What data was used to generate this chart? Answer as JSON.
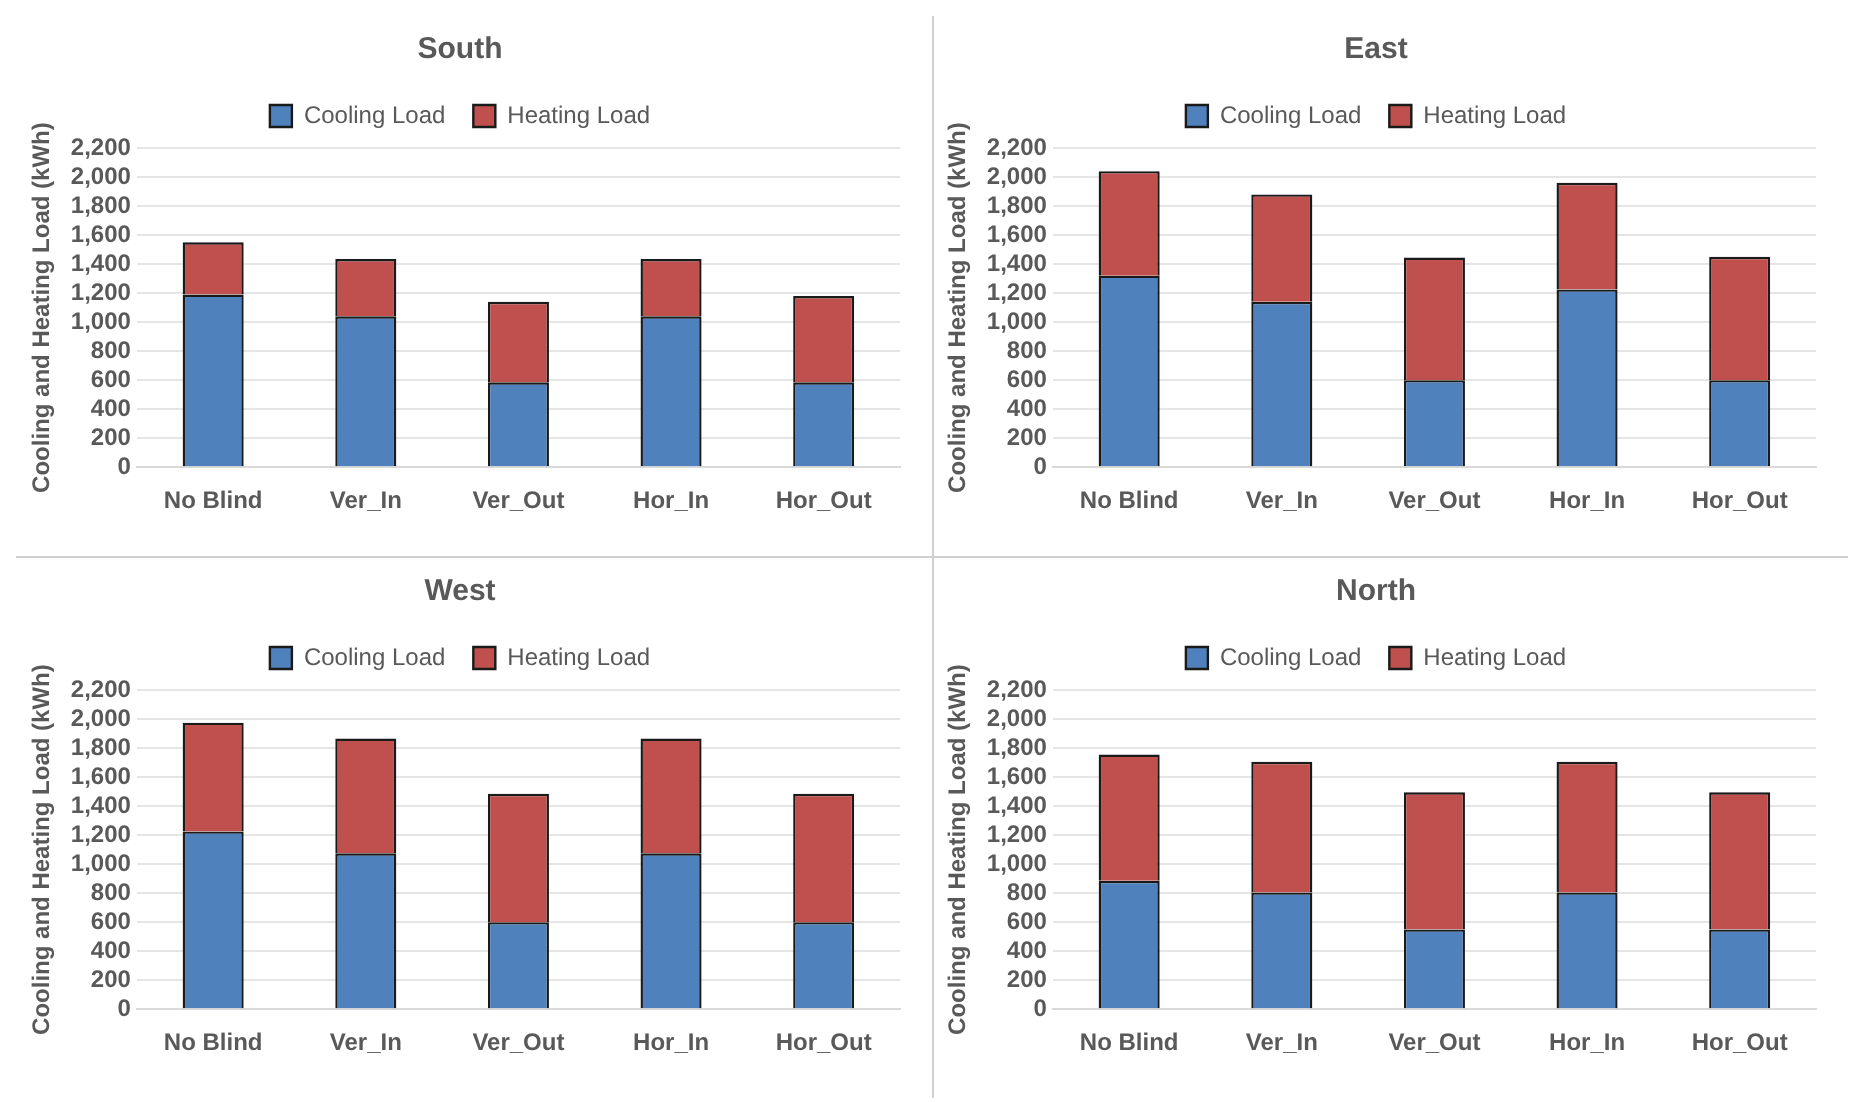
{
  "chart_data": [
    {
      "type": "bar",
      "title": "South",
      "ylabel": "Cooling and Heating Load (kWh)",
      "categories": [
        "No Blind",
        "Ver_In",
        "Ver_Out",
        "Hor_In",
        "Hor_Out"
      ],
      "stacked": true,
      "legend": "top",
      "grid": "y",
      "ylim": [
        0,
        2200
      ],
      "yticks": [
        0,
        200,
        400,
        600,
        800,
        {
          "value": 1000,
          "label": "1,000"
        },
        {
          "value": 1200,
          "label": "1,200"
        },
        {
          "value": 1400,
          "label": "1,400"
        },
        {
          "value": 1600,
          "label": "1,600"
        },
        {
          "value": 1800,
          "label": "1,800"
        },
        {
          "value": 2000,
          "label": "2,000"
        },
        {
          "value": 2200,
          "label": "2,200"
        }
      ],
      "series": [
        {
          "name": "Cooling Load",
          "color": "#4f81bd",
          "values": [
            1190,
            1040,
            585,
            1040,
            585
          ]
        },
        {
          "name": "Heating Load",
          "color": "#c0504d",
          "values": [
            360,
            395,
            555,
            395,
            595
          ]
        }
      ]
    },
    {
      "type": "bar",
      "title": "East",
      "ylabel": "Cooling and Heating Load (kWh)",
      "categories": [
        "No Blind",
        "Ver_In",
        "Ver_Out",
        "Hor_In",
        "Hor_Out"
      ],
      "stacked": true,
      "legend": "top",
      "grid": "y",
      "ylim": [
        0,
        2200
      ],
      "yticks": [
        0,
        200,
        400,
        600,
        800,
        {
          "value": 1000,
          "label": "1,000"
        },
        {
          "value": 1200,
          "label": "1,200"
        },
        {
          "value": 1400,
          "label": "1,400"
        },
        {
          "value": 1600,
          "label": "1,600"
        },
        {
          "value": 1800,
          "label": "1,800"
        },
        {
          "value": 2000,
          "label": "2,000"
        },
        {
          "value": 2200,
          "label": "2,200"
        }
      ],
      "series": [
        {
          "name": "Cooling Load",
          "color": "#4f81bd",
          "values": [
            1320,
            1140,
            600,
            1225,
            600
          ]
        },
        {
          "name": "Heating Load",
          "color": "#c0504d",
          "values": [
            720,
            740,
            845,
            735,
            850
          ]
        }
      ]
    },
    {
      "type": "bar",
      "title": "West",
      "ylabel": "Cooling and Heating Load (kWh)",
      "categories": [
        "No Blind",
        "Ver_In",
        "Ver_Out",
        "Hor_In",
        "Hor_Out"
      ],
      "stacked": true,
      "legend": "top",
      "grid": "y",
      "ylim": [
        0,
        2200
      ],
      "yticks": [
        0,
        200,
        400,
        600,
        800,
        {
          "value": 1000,
          "label": "1,000"
        },
        {
          "value": 1200,
          "label": "1,200"
        },
        {
          "value": 1400,
          "label": "1,400"
        },
        {
          "value": 1600,
          "label": "1,600"
        },
        {
          "value": 1800,
          "label": "1,800"
        },
        {
          "value": 2000,
          "label": "2,000"
        },
        {
          "value": 2200,
          "label": "2,200"
        }
      ],
      "series": [
        {
          "name": "Cooling Load",
          "color": "#4f81bd",
          "values": [
            1225,
            1075,
            600,
            1075,
            600
          ]
        },
        {
          "name": "Heating Load",
          "color": "#c0504d",
          "values": [
            750,
            790,
            885,
            790,
            885
          ]
        }
      ]
    },
    {
      "type": "bar",
      "title": "North",
      "ylabel": "Cooling and Heating Load (kWh)",
      "categories": [
        "No Blind",
        "Ver_In",
        "Ver_Out",
        "Hor_In",
        "Hor_Out"
      ],
      "stacked": true,
      "legend": "top",
      "grid": "y",
      "ylim": [
        0,
        2200
      ],
      "yticks": [
        0,
        200,
        400,
        600,
        800,
        {
          "value": 1000,
          "label": "1,000"
        },
        {
          "value": 1200,
          "label": "1,200"
        },
        {
          "value": 1400,
          "label": "1,400"
        },
        {
          "value": 1600,
          "label": "1,600"
        },
        {
          "value": 1800,
          "label": "1,800"
        },
        {
          "value": 2000,
          "label": "2,000"
        },
        {
          "value": 2200,
          "label": "2,200"
        }
      ],
      "series": [
        {
          "name": "Cooling Load",
          "color": "#4f81bd",
          "values": [
            885,
            805,
            550,
            805,
            550
          ]
        },
        {
          "name": "Heating Load",
          "color": "#c0504d",
          "values": [
            870,
            900,
            945,
            900,
            945
          ]
        }
      ]
    }
  ]
}
